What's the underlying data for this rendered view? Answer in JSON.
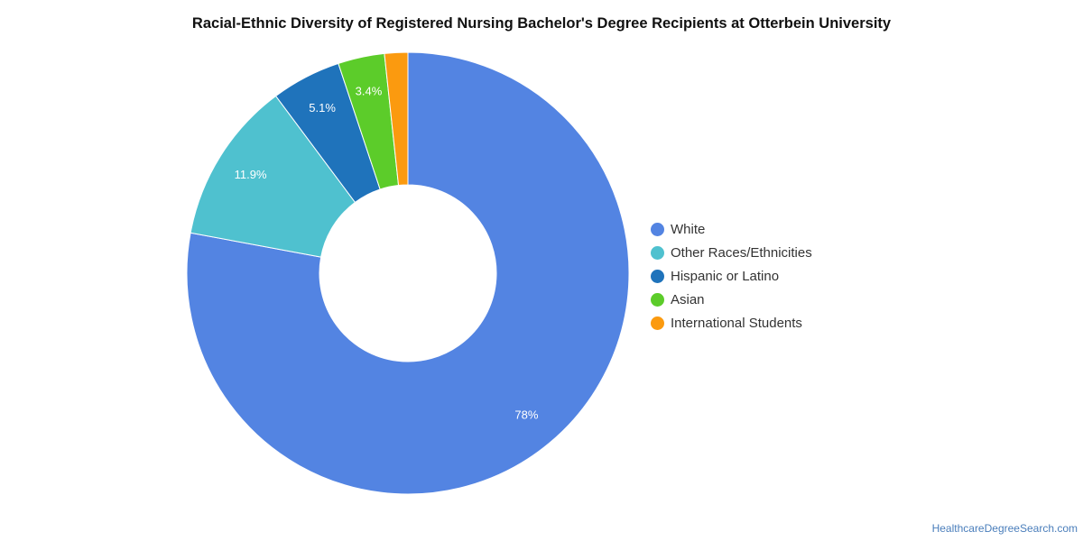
{
  "chart_data": {
    "type": "pie",
    "title": "Racial-Ethnic Diversity of Registered Nursing Bachelor's Degree Recipients at Otterbein University",
    "donut": true,
    "legend_position": "right",
    "series": [
      {
        "name": "White",
        "value": 78,
        "label": "78%",
        "color": "#5384e2"
      },
      {
        "name": "Other Races/Ethnicities",
        "value": 11.9,
        "label": "11.9%",
        "color": "#4fc1cf"
      },
      {
        "name": "Hispanic or Latino",
        "value": 5.1,
        "label": "5.1%",
        "color": "#1f73bb"
      },
      {
        "name": "Asian",
        "value": 3.4,
        "label": "3.4%",
        "color": "#5ccc2a"
      },
      {
        "name": "International Students",
        "value": 1.7,
        "label": "",
        "color": "#fb9a0f"
      }
    ]
  },
  "credit": "HealthcareDegreeSearch.com"
}
